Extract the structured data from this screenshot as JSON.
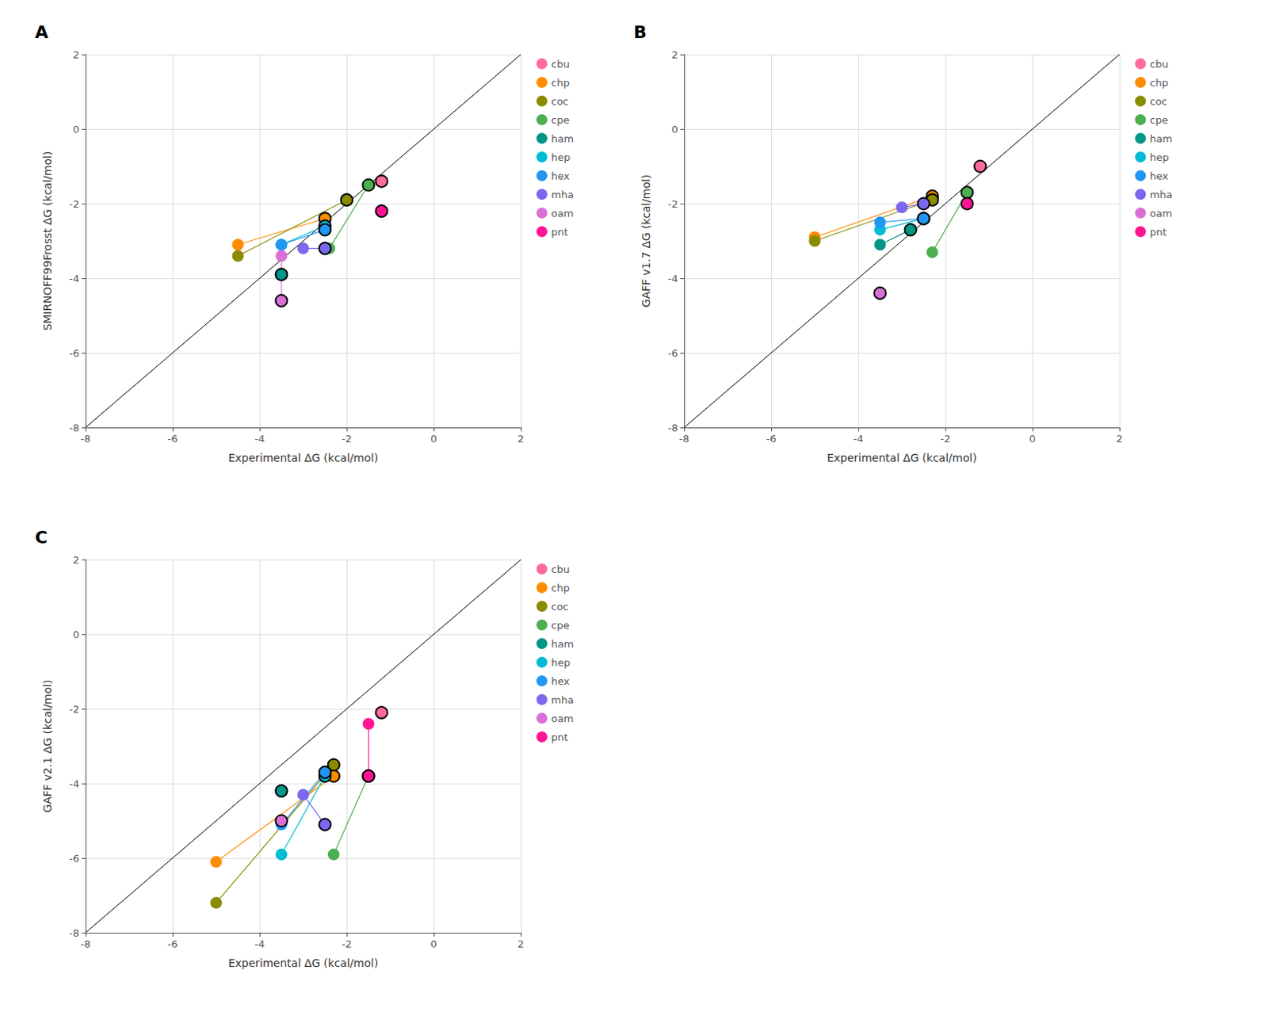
{
  "chart_data": [
    {
      "type": "scatter",
      "title": "A",
      "xlabel": "Experimental ΔG (kcal/mol)",
      "ylabel": "SMIRNOFF99Frosst ΔG (kcal/mol)",
      "xlim": [
        -8,
        2
      ],
      "ylim": [
        -8,
        2
      ],
      "xticks": [
        -8,
        -6,
        -4,
        -2,
        0,
        2
      ],
      "yticks": [
        -8,
        -6,
        -4,
        -2,
        0,
        2
      ],
      "grid": true,
      "legend": "right",
      "series": [
        {
          "name": "cbu",
          "color": "#FF6B9D",
          "x": [
            -1.2,
            -1.2
          ],
          "values": [
            -1.4,
            -1.4
          ]
        },
        {
          "name": "chp",
          "color": "#FF8C00",
          "x": [
            -4.5,
            -2.5
          ],
          "values": [
            -3.1,
            -2.4
          ]
        },
        {
          "name": "coc",
          "color": "#8B8B00",
          "x": [
            -4.5,
            -2.0
          ],
          "values": [
            -3.4,
            -1.9
          ]
        },
        {
          "name": "cpe",
          "color": "#4CAF50",
          "x": [
            -2.4,
            -1.5
          ],
          "values": [
            -3.2,
            -1.5
          ]
        },
        {
          "name": "ham",
          "color": "#009688",
          "x": [
            -3.5,
            -3.5
          ],
          "values": [
            -3.9,
            -3.9
          ]
        },
        {
          "name": "hep",
          "color": "#00BCD4",
          "x": [
            -3.5,
            -2.5
          ],
          "values": [
            -3.1,
            -2.6
          ]
        },
        {
          "name": "hex",
          "color": "#2196F3",
          "x": [
            -3.5,
            -2.5
          ],
          "values": [
            -3.1,
            -2.7
          ]
        },
        {
          "name": "mha",
          "color": "#7B68EE",
          "x": [
            -3.0,
            -2.5
          ],
          "values": [
            -3.2,
            -3.2
          ]
        },
        {
          "name": "oam",
          "color": "#DA70D6",
          "x": [
            -3.5,
            -3.5
          ],
          "values": [
            -3.4,
            -4.6
          ]
        },
        {
          "name": "pnt",
          "color": "#FF1493",
          "x": [
            -1.2,
            -1.2
          ],
          "values": [
            -2.2,
            -2.2
          ]
        }
      ]
    },
    {
      "type": "scatter",
      "title": "B",
      "xlabel": "Experimental ΔG (kcal/mol)",
      "ylabel": "GAFF v1.7 ΔG (kcal/mol)",
      "xlim": [
        -8,
        2
      ],
      "ylim": [
        -8,
        2
      ],
      "xticks": [
        -8,
        -6,
        -4,
        -2,
        0,
        2
      ],
      "yticks": [
        -8,
        -6,
        -4,
        -2,
        0,
        2
      ],
      "grid": true,
      "legend": "right",
      "series": [
        {
          "name": "cbu",
          "color": "#FF6B9D",
          "x": [
            -1.2,
            -1.2
          ],
          "values": [
            -1.0,
            -1.0
          ]
        },
        {
          "name": "chp",
          "color": "#FF8C00",
          "x": [
            -5.0,
            -2.3
          ],
          "values": [
            -2.9,
            -1.8
          ]
        },
        {
          "name": "coc",
          "color": "#8B8B00",
          "x": [
            -5.0,
            -2.3
          ],
          "values": [
            -3.0,
            -1.9
          ]
        },
        {
          "name": "cpe",
          "color": "#4CAF50",
          "x": [
            -2.3,
            -1.5
          ],
          "values": [
            -3.3,
            -1.7
          ]
        },
        {
          "name": "ham",
          "color": "#009688",
          "x": [
            -3.5,
            -2.8
          ],
          "values": [
            -3.1,
            -2.7
          ]
        },
        {
          "name": "hep",
          "color": "#00BCD4",
          "x": [
            -3.5,
            -2.5
          ],
          "values": [
            -2.7,
            -2.4
          ]
        },
        {
          "name": "hex",
          "color": "#2196F3",
          "x": [
            -3.5,
            -2.5
          ],
          "values": [
            -2.5,
            -2.4
          ]
        },
        {
          "name": "mha",
          "color": "#7B68EE",
          "x": [
            -3.0,
            -2.5
          ],
          "values": [
            -2.1,
            -2.0
          ]
        },
        {
          "name": "oam",
          "color": "#DA70D6",
          "x": [
            -3.5,
            -3.5
          ],
          "values": [
            -4.4,
            -4.4
          ]
        },
        {
          "name": "pnt",
          "color": "#FF1493",
          "x": [
            -1.5,
            -1.5
          ],
          "values": [
            -2.0,
            -2.0
          ]
        }
      ]
    },
    {
      "type": "scatter",
      "title": "C",
      "xlabel": "Experimental ΔG (kcal/mol)",
      "ylabel": "GAFF v2.1 ΔG (kcal/mol)",
      "xlim": [
        -8,
        2
      ],
      "ylim": [
        -8,
        2
      ],
      "xticks": [
        -8,
        -6,
        -4,
        -2,
        0,
        2
      ],
      "yticks": [
        -8,
        -6,
        -4,
        -2,
        0,
        2
      ],
      "grid": true,
      "legend": "right",
      "series": [
        {
          "name": "cbu",
          "color": "#FF6B9D",
          "x": [
            -1.2,
            -1.2
          ],
          "values": [
            -2.1,
            -2.1
          ]
        },
        {
          "name": "chp",
          "color": "#FF8C00",
          "x": [
            -5.0,
            -2.3
          ],
          "values": [
            -6.1,
            -3.8
          ]
        },
        {
          "name": "coc",
          "color": "#8B8B00",
          "x": [
            -5.0,
            -2.3
          ],
          "values": [
            -7.2,
            -3.5
          ]
        },
        {
          "name": "cpe",
          "color": "#4CAF50",
          "x": [
            -2.3,
            -1.5
          ],
          "values": [
            -5.9,
            -3.8
          ]
        },
        {
          "name": "ham",
          "color": "#009688",
          "x": [
            -3.5,
            -3.5
          ],
          "values": [
            -4.2,
            -4.2
          ]
        },
        {
          "name": "hep",
          "color": "#00BCD4",
          "x": [
            -3.5,
            -2.5
          ],
          "values": [
            -5.9,
            -3.8
          ]
        },
        {
          "name": "hex",
          "color": "#2196F3",
          "x": [
            -3.5,
            -2.5
          ],
          "values": [
            -5.1,
            -3.7
          ]
        },
        {
          "name": "mha",
          "color": "#7B68EE",
          "x": [
            -3.0,
            -2.5
          ],
          "values": [
            -4.3,
            -5.1
          ]
        },
        {
          "name": "oam",
          "color": "#DA70D6",
          "x": [
            -3.5,
            -3.5
          ],
          "values": [
            -5.0,
            -5.0
          ]
        },
        {
          "name": "pnt",
          "color": "#FF1493",
          "x": [
            -1.5,
            -1.5
          ],
          "values": [
            -2.4,
            -3.8
          ]
        }
      ]
    }
  ]
}
